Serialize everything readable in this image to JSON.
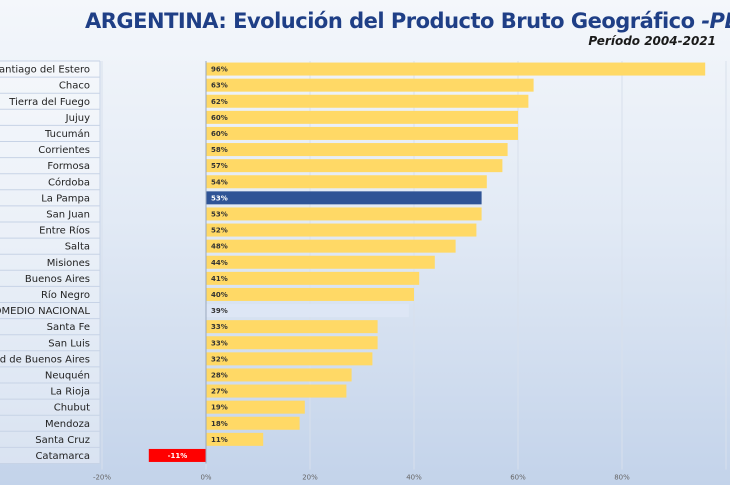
{
  "header": {
    "title": "ARGENTINA: Evolución del Producto Bruto Geográfico",
    "title_suffix": "-PBG-",
    "subtitle": "Período 2004-2021"
  },
  "chart_data": {
    "type": "bar",
    "orientation": "horizontal",
    "title": "ARGENTINA: Evolución del Producto Bruto Geográfico -PBG-",
    "subtitle": "Período 2004-2021",
    "categories": [
      "Santiago del Estero",
      "Chaco",
      "Tierra del Fuego",
      "Jujuy",
      "Tucumán",
      "Corrientes",
      "Formosa",
      "Córdoba",
      "La Pampa",
      "San Juan",
      "Entre Ríos",
      "Salta",
      "Misiones",
      "Buenos Aires",
      "Río Negro",
      "PROMEDIO NACIONAL",
      "Santa Fe",
      "San Luis",
      "Ciudad de Buenos Aires",
      "Neuquén",
      "La Rioja",
      "Chubut",
      "Mendoza",
      "Santa Cruz",
      "Catamarca"
    ],
    "values": [
      96,
      63,
      62,
      60,
      60,
      58,
      57,
      54,
      53,
      53,
      52,
      48,
      44,
      41,
      40,
      39,
      33,
      33,
      32,
      28,
      27,
      19,
      18,
      11,
      -11
    ],
    "value_labels": [
      "96%",
      "63%",
      "62%",
      "60%",
      "60%",
      "58%",
      "57%",
      "54%",
      "53%",
      "53%",
      "52%",
      "48%",
      "44%",
      "41%",
      "40%",
      "39%",
      "33%",
      "33%",
      "32%",
      "28%",
      "27%",
      "19%",
      "18%",
      "11%",
      "-11%"
    ],
    "highlight": {
      "La Pampa": "#2f5496",
      "PROMEDIO NACIONAL": "#dde6f5",
      "Catamarca": "#ff0000"
    },
    "default_color": "#ffd966",
    "xlim": [
      -20,
      100
    ],
    "x_ticks": [
      -20,
      0,
      20,
      40,
      60,
      80
    ],
    "x_tick_labels": [
      "-20%",
      "0%",
      "20%",
      "40%",
      "60%",
      "80%"
    ],
    "grid": true
  }
}
